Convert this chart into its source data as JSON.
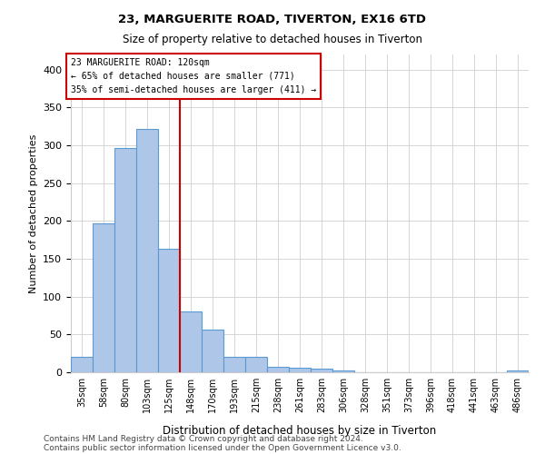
{
  "title1": "23, MARGUERITE ROAD, TIVERTON, EX16 6TD",
  "title2": "Size of property relative to detached houses in Tiverton",
  "xlabel": "Distribution of detached houses by size in Tiverton",
  "ylabel": "Number of detached properties",
  "categories": [
    "35sqm",
    "58sqm",
    "80sqm",
    "103sqm",
    "125sqm",
    "148sqm",
    "170sqm",
    "193sqm",
    "215sqm",
    "238sqm",
    "261sqm",
    "283sqm",
    "306sqm",
    "328sqm",
    "351sqm",
    "373sqm",
    "396sqm",
    "418sqm",
    "441sqm",
    "463sqm",
    "486sqm"
  ],
  "values": [
    20,
    197,
    296,
    322,
    163,
    80,
    57,
    20,
    20,
    7,
    6,
    5,
    3,
    0,
    0,
    0,
    0,
    0,
    0,
    0,
    3
  ],
  "bar_color": "#aec6e8",
  "bar_edge_color": "#5b9bd5",
  "property_line_x": 4.5,
  "annotation_text1": "23 MARGUERITE ROAD: 120sqm",
  "annotation_text2": "← 65% of detached houses are smaller (771)",
  "annotation_text3": "35% of semi-detached houses are larger (411) →",
  "vline_color": "#cc0000",
  "annotation_box_color": "#cc0000",
  "grid_color": "#d0d0d0",
  "footnote1": "Contains HM Land Registry data © Crown copyright and database right 2024.",
  "footnote2": "Contains public sector information licensed under the Open Government Licence v3.0.",
  "ylim": [
    0,
    420
  ],
  "figsize": [
    6.0,
    5.0
  ],
  "dpi": 100
}
